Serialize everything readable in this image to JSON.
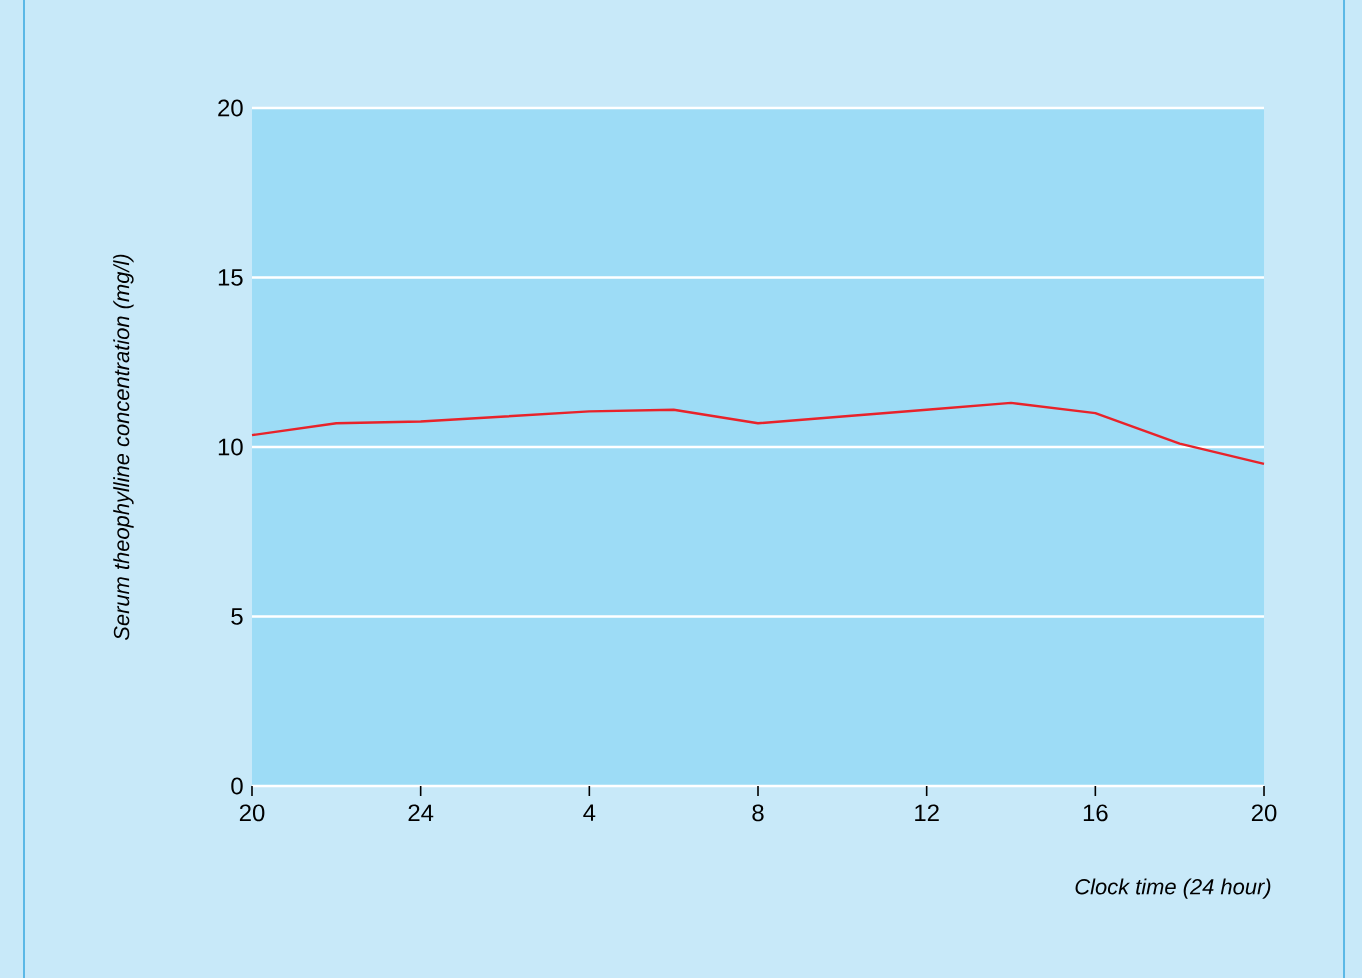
{
  "chart_data": {
    "type": "line",
    "xlabel": "Clock time (24 hour)",
    "ylabel": "Serum theophylline concentration (mg/l)",
    "categories": [
      "20",
      null,
      "24",
      null,
      "4",
      null,
      "8",
      null,
      "12",
      null,
      "16",
      null,
      "20"
    ],
    "series": [
      {
        "color": "#e8232a",
        "values": [
          10.35,
          10.7,
          10.75,
          10.9,
          11.05,
          11.1,
          10.7,
          10.9,
          11.1,
          11.3,
          11.0,
          10.1,
          9.5
        ]
      }
    ],
    "ylim": [
      0,
      20
    ],
    "yticks": [
      0,
      5,
      10,
      15,
      20
    ],
    "grid": "y",
    "marker": "none",
    "line_style": "solid"
  }
}
